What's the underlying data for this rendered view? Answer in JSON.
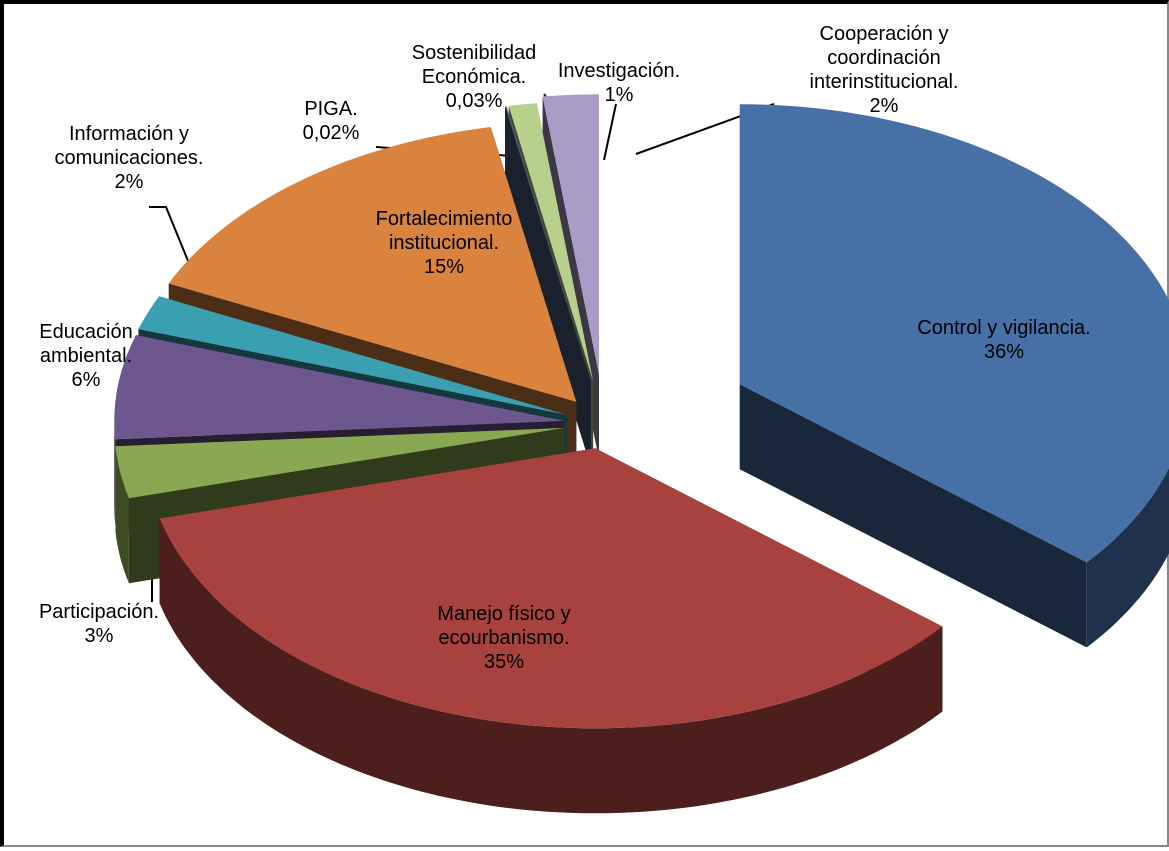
{
  "chart_data": {
    "type": "pie",
    "categories": [
      "Control y vigilancia.",
      "Manejo físico y ecourbanismo.",
      "Participación.",
      "Educación ambiental.",
      "Información y comunicaciones.",
      "Fortalecimiento institucional.",
      "PIGA.",
      "Sostenibilidad Económica.",
      "Investigación.",
      "Cooperación y coordinación interinstitucional."
    ],
    "values": [
      36,
      35,
      3,
      6,
      2,
      15,
      0.02,
      0.03,
      1,
      2
    ],
    "value_labels": [
      "36%",
      "35%",
      "3%",
      "6%",
      "2%",
      "15%",
      "0,02%",
      "0,03%",
      "1%",
      "2%"
    ],
    "colors": [
      "#4670a6",
      "#a8423f",
      "#8aa851",
      "#6e568e",
      "#3a9fb0",
      "#d9833e",
      "#4d5e7e",
      "#5b7196",
      "#b7d08b",
      "#a99cc6"
    ]
  }
}
